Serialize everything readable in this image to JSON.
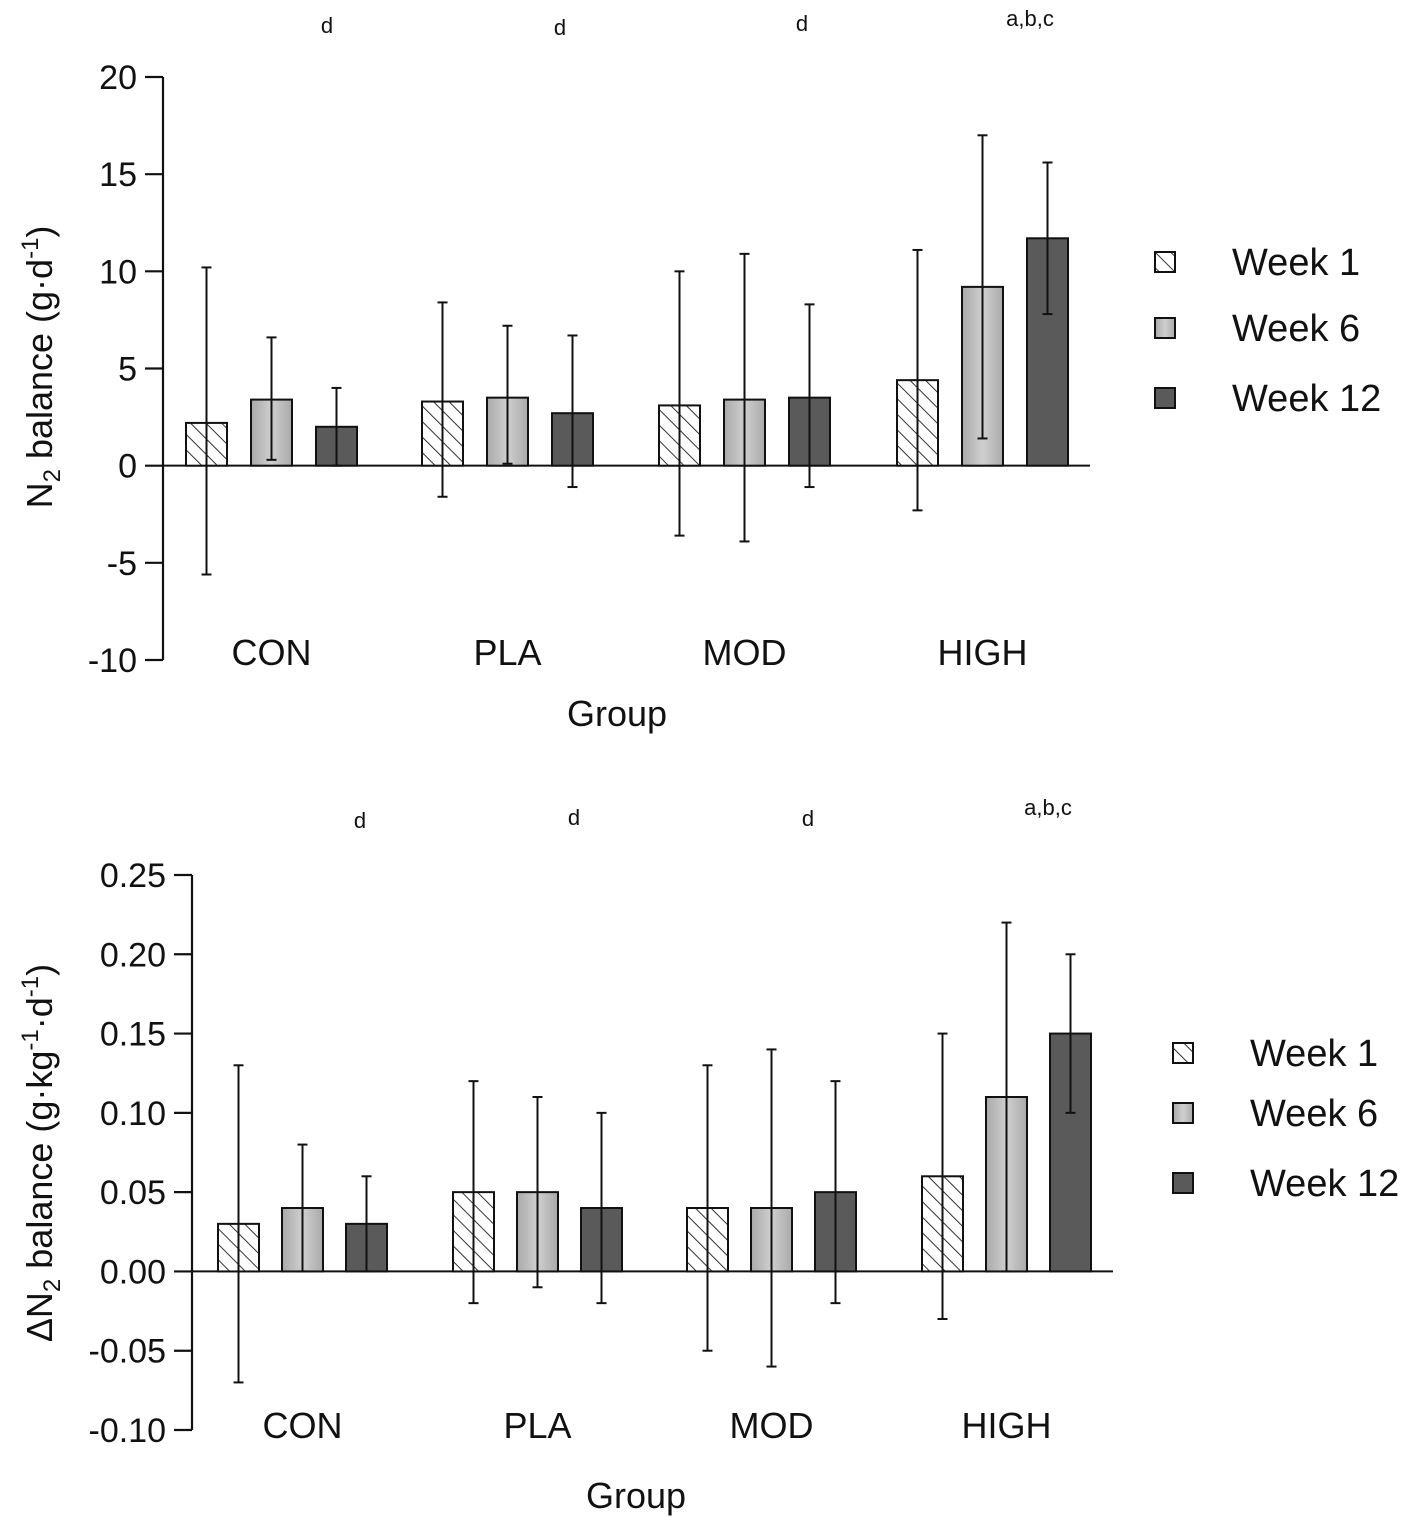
{
  "chart_data": [
    {
      "type": "bar",
      "title": "",
      "ylabel_main": "N",
      "ylabel_sub": "2",
      "ylabel_rest": " balance (g·d",
      "ylabel_sup": "-1",
      "ylabel_close": ")",
      "xlabel": "Group",
      "categories": [
        "CON",
        "PLA",
        "MOD",
        "HIGH"
      ],
      "ylim": [
        -10,
        20
      ],
      "yticks": [
        -10,
        -5,
        0,
        5,
        10,
        15,
        20
      ],
      "series": [
        {
          "name": "Week 1",
          "pattern": "hatch",
          "values": [
            2.2,
            3.3,
            3.1,
            4.4
          ],
          "err_low": [
            -5.6,
            -1.6,
            -3.6,
            -2.3
          ],
          "err_high": [
            10.2,
            8.4,
            10.0,
            11.1
          ]
        },
        {
          "name": "Week 6",
          "pattern": "light",
          "values": [
            3.4,
            3.5,
            3.4,
            9.2
          ],
          "err_low": [
            0.3,
            0.1,
            -3.9,
            1.4
          ],
          "err_high": [
            6.6,
            7.2,
            10.9,
            17.0
          ]
        },
        {
          "name": "Week 12",
          "pattern": "dark",
          "values": [
            2.0,
            2.7,
            3.5,
            11.7
          ],
          "err_low": [
            0.0,
            -1.1,
            -1.1,
            7.8
          ],
          "err_high": [
            4.0,
            6.7,
            8.3,
            15.6
          ]
        }
      ],
      "annotations": [
        "d",
        "d",
        "d",
        "a,b,c"
      ],
      "legend_position": "right"
    },
    {
      "type": "bar",
      "title": "",
      "ylabel_main": "ΔN",
      "ylabel_sub": "2",
      "ylabel_rest": " balance (g·kg",
      "ylabel_sup": "-1",
      "ylabel_mid": "·d",
      "ylabel_sup2": "-1",
      "ylabel_close": ")",
      "xlabel": "Group",
      "categories": [
        "CON",
        "PLA",
        "MOD",
        "HIGH"
      ],
      "ylim": [
        -0.1,
        0.25
      ],
      "yticks": [
        "-0.10",
        "-0.05",
        "0.00",
        "0.05",
        "0.10",
        "0.15",
        "0.20",
        "0.25"
      ],
      "series": [
        {
          "name": "Week 1",
          "pattern": "hatch",
          "values": [
            0.03,
            0.05,
            0.04,
            0.06
          ],
          "err_low": [
            -0.07,
            -0.02,
            -0.05,
            -0.03
          ],
          "err_high": [
            0.13,
            0.12,
            0.13,
            0.15
          ]
        },
        {
          "name": "Week 6",
          "pattern": "light",
          "values": [
            0.04,
            0.05,
            0.04,
            0.11
          ],
          "err_low": [
            0.0,
            -0.01,
            -0.06,
            0.0
          ],
          "err_high": [
            0.08,
            0.11,
            0.14,
            0.22
          ]
        },
        {
          "name": "Week 12",
          "pattern": "dark",
          "values": [
            0.03,
            0.04,
            0.05,
            0.15
          ],
          "err_low": [
            0.0,
            -0.02,
            -0.02,
            0.1
          ],
          "err_high": [
            0.06,
            0.1,
            0.12,
            0.2
          ]
        }
      ],
      "annotations": [
        "d",
        "d",
        "d",
        "a,b,c"
      ],
      "legend_position": "right"
    }
  ],
  "colors": {
    "light_fill": "#bdbdbd",
    "dark_fill": "#5a5a5a",
    "hatch_line": "#333333",
    "axis": "#111111"
  }
}
